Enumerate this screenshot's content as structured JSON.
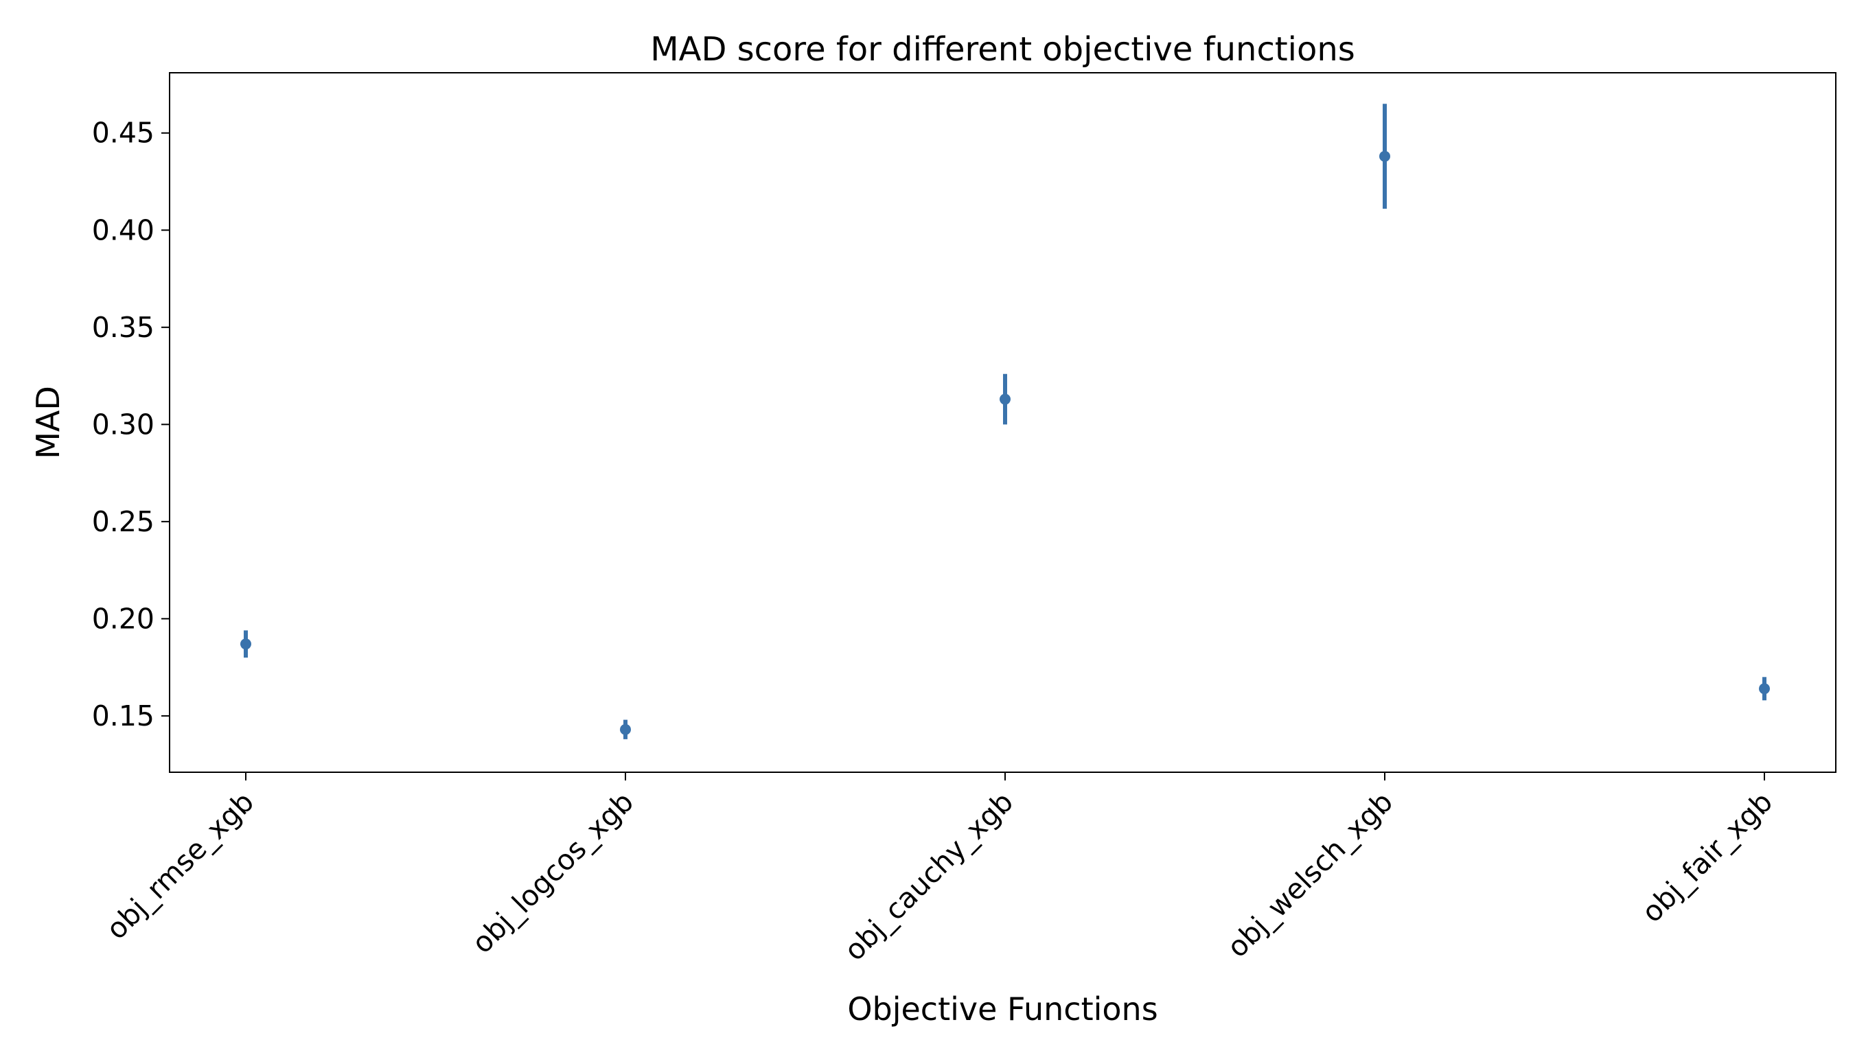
{
  "chart_data": {
    "type": "scatter",
    "title": "MAD score for different objective functions",
    "xlabel": "Objective Functions",
    "ylabel": "MAD",
    "categories": [
      "obj_rmse_xgb",
      "obj_logcos_xgb",
      "obj_cauchy_xgb",
      "obj_welsch_xgb",
      "obj_fair_xgb"
    ],
    "series": [
      {
        "values": [
          0.187,
          0.143,
          0.313,
          0.438,
          0.164
        ],
        "error_low": [
          0.18,
          0.138,
          0.3,
          0.411,
          0.158
        ],
        "error_high": [
          0.194,
          0.148,
          0.326,
          0.465,
          0.17
        ]
      }
    ],
    "ylim": [
      0.121,
      0.481
    ],
    "yticks": [
      0.15,
      0.2,
      0.25,
      0.3,
      0.35,
      0.4,
      0.45
    ],
    "ytick_labels": [
      "0.15",
      "0.20",
      "0.25",
      "0.30",
      "0.35",
      "0.40",
      "0.45"
    ],
    "grid": false,
    "colors": {
      "marker": "#3a73ac",
      "axes": "#000000"
    }
  }
}
